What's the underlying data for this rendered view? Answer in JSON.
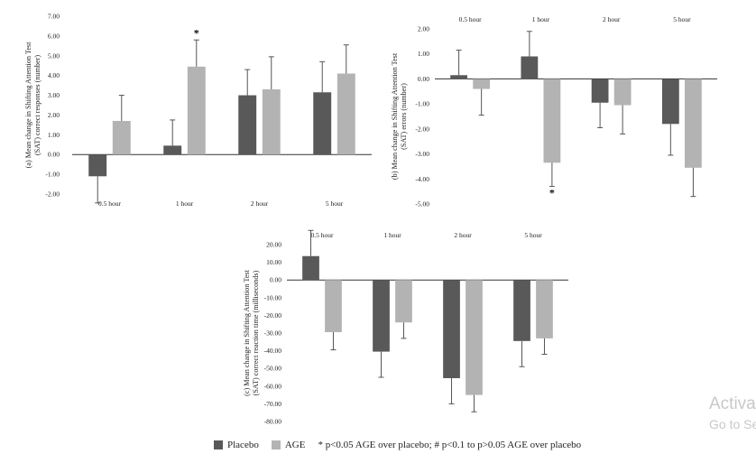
{
  "chart_data": [
    {
      "type": "bar",
      "panel_label": "(a)",
      "ylabel": "(a) Mean change in Shifting Attention Test (SAT) correct responses (number)",
      "ylim": [
        -2,
        7
      ],
      "yticks": [
        -2,
        -1,
        0,
        1,
        2,
        3,
        4,
        5,
        6,
        7
      ],
      "categories": [
        "0.5 hour",
        "1 hour",
        "2 hour",
        "5 hour"
      ],
      "category_labels_position": "bottom",
      "series": [
        {
          "name": "Placebo",
          "values": [
            -1.1,
            0.45,
            3.0,
            3.15
          ],
          "errors": [
            1.35,
            1.3,
            1.3,
            1.55
          ]
        },
        {
          "name": "AGE",
          "values": [
            1.7,
            4.45,
            3.3,
            4.1
          ],
          "errors": [
            1.3,
            1.35,
            1.65,
            1.45
          ]
        }
      ],
      "annotations": [
        {
          "category": "1 hour",
          "series": "AGE",
          "text": "*"
        }
      ]
    },
    {
      "type": "bar",
      "panel_label": "(b)",
      "ylabel": "(b) Mean change in Shifting Attention Test (SAT) errors (number)",
      "ylim": [
        -5,
        2
      ],
      "yticks": [
        -5,
        -4,
        -3,
        -2,
        -1,
        0,
        1,
        2
      ],
      "categories": [
        "0.5 hour",
        "1 hour",
        "2 hour",
        "5 hour"
      ],
      "category_labels_position": "top",
      "series": [
        {
          "name": "Placebo",
          "values": [
            0.15,
            0.9,
            -0.95,
            -1.8
          ],
          "errors": [
            1.0,
            1.0,
            1.0,
            1.25
          ]
        },
        {
          "name": "AGE",
          "values": [
            -0.4,
            -3.35,
            -1.05,
            -3.55
          ],
          "errors": [
            1.05,
            0.95,
            1.15,
            1.15
          ]
        }
      ],
      "annotations": [
        {
          "category": "1 hour",
          "series": "AGE",
          "text": "*"
        }
      ]
    },
    {
      "type": "bar",
      "panel_label": "(c)",
      "ylabel": "(c) Mean change in Shifting Attention Test (SAT) correct reaction time (milliseconds)",
      "ylim": [
        -80,
        20
      ],
      "yticks": [
        -80,
        -70,
        -60,
        -50,
        -40,
        -30,
        -20,
        -10,
        0,
        10,
        20
      ],
      "categories": [
        "0.5 hour",
        "1 hour",
        "2 hour",
        "5 hour"
      ],
      "category_labels_position": "top",
      "series": [
        {
          "name": "Placebo",
          "values": [
            13.5,
            -40.5,
            -55.5,
            -34.5
          ],
          "errors": [
            14.5,
            14.5,
            14.5,
            14.5
          ]
        },
        {
          "name": "AGE",
          "values": [
            -29.5,
            -24.0,
            -65.0,
            -33.0
          ],
          "errors": [
            10.0,
            9.0,
            9.5,
            9.0
          ]
        }
      ],
      "annotations": []
    }
  ],
  "legend": {
    "items": [
      {
        "label": "Placebo",
        "color": "#595959"
      },
      {
        "label": "AGE",
        "color": "#b3b3b3"
      }
    ],
    "note": "* p<0.05 AGE over placebo; # p<0.1 to p>0.05 AGE over placebo"
  },
  "colors": {
    "placebo": "#595959",
    "age": "#b3b3b3",
    "axis": "#333333",
    "error_bar": "#555555"
  },
  "watermark": {
    "line1": "Activate",
    "line2": "Go to Settings"
  }
}
